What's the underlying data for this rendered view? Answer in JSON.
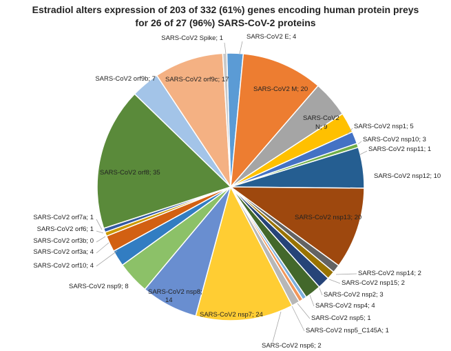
{
  "chart_data": {
    "type": "pie",
    "title_line1": "Estradiol alters expression of 203 of 332 (61%) genes encoding human protein preys",
    "title_line2": "for 26 of 27 (96%) SARS-CoV-2 proteins",
    "slices": [
      {
        "name": "SARS-CoV2 E",
        "value": 4,
        "color": "#5b9bd5"
      },
      {
        "name": "SARS-CoV2 M",
        "value": 20,
        "color": "#ed7d31"
      },
      {
        "name": "SARS-CoV2 N",
        "value": 9,
        "color": "#a5a5a5"
      },
      {
        "name": "SARS-CoV2 nsp1",
        "value": 5,
        "color": "#ffc000"
      },
      {
        "name": "SARS-CoV2 nsp10",
        "value": 3,
        "color": "#4472c4"
      },
      {
        "name": "SARS-CoV2 nsp11",
        "value": 1,
        "color": "#70ad47"
      },
      {
        "name": "SARS-CoV2 nsp12",
        "value": 10,
        "color": "#255e91"
      },
      {
        "name": "SARS-CoV2 nsp13",
        "value": 20,
        "color": "#9e480e"
      },
      {
        "name": "SARS-CoV2 nsp14",
        "value": 2,
        "color": "#636363"
      },
      {
        "name": "SARS-CoV2 nsp15",
        "value": 2,
        "color": "#997300"
      },
      {
        "name": "SARS-CoV2 nsp2",
        "value": 3,
        "color": "#264478"
      },
      {
        "name": "SARS-CoV2 nsp4",
        "value": 4,
        "color": "#43682b"
      },
      {
        "name": "SARS-CoV2 nsp5",
        "value": 1,
        "color": "#7cafdd"
      },
      {
        "name": "SARS-CoV2 nsp5_C145A",
        "value": 1,
        "color": "#f1975a"
      },
      {
        "name": "SARS-CoV2 nsp6",
        "value": 2,
        "color": "#b7b7b7"
      },
      {
        "name": "SARS-CoV2 nsp7",
        "value": 24,
        "color": "#ffcd33"
      },
      {
        "name": "SARS-CoV2 nsp8",
        "value": 14,
        "color": "#698ed0"
      },
      {
        "name": "SARS-CoV2 nsp9",
        "value": 8,
        "color": "#8cc168"
      },
      {
        "name": "SARS-CoV2 orf10",
        "value": 4,
        "color": "#327dc2"
      },
      {
        "name": "SARS-CoV2 orf3a",
        "value": 4,
        "color": "#d26012"
      },
      {
        "name": "SARS-CoV2 orf3b",
        "value": 0,
        "color": "#848484"
      },
      {
        "name": "SARS-CoV2 orf6",
        "value": 1,
        "color": "#cc9a00"
      },
      {
        "name": "SARS-CoV2 orf7a",
        "value": 1,
        "color": "#335aa1"
      },
      {
        "name": "SARS-CoV2 orf8",
        "value": 35,
        "color": "#5a8a3a"
      },
      {
        "name": "SARS-CoV2 orf9b",
        "value": 7,
        "color": "#a3c4e8"
      },
      {
        "name": "SARS-CoV2 orf9c",
        "value": 17,
        "color": "#f4b183"
      },
      {
        "name": "SARS-CoV2 Spike",
        "value": 1,
        "color": "#c9c9c9"
      }
    ],
    "labels": [
      {
        "text": "SARS-CoV2 E; 4"
      },
      {
        "text": "SARS-CoV2 M; 20"
      },
      {
        "text": "SARS-CoV2"
      },
      {
        "text": "N; 9"
      },
      {
        "text": "SARS-CoV2 nsp1; 5"
      },
      {
        "text": "SARS-CoV2 nsp10; 3"
      },
      {
        "text": "SARS-CoV2 nsp11; 1"
      },
      {
        "text": "SARS-CoV2 nsp12; 10"
      },
      {
        "text": "SARS-CoV2 nsp13; 20"
      },
      {
        "text": "SARS-CoV2 nsp14; 2"
      },
      {
        "text": "SARS-CoV2 nsp15; 2"
      },
      {
        "text": "SARS-CoV2 nsp2; 3"
      },
      {
        "text": "SARS-CoV2 nsp4; 4"
      },
      {
        "text": "SARS-CoV2 nsp5; 1"
      },
      {
        "text": "SARS-CoV2 nsp5_C145A; 1"
      },
      {
        "text": "SARS-CoV2 nsp6; 2"
      },
      {
        "text": "SARS-CoV2 nsp7; 24"
      },
      {
        "text": "SARS-CoV2 nsp8;"
      },
      {
        "text": "14"
      },
      {
        "text": "SARS-CoV2 nsp9; 8"
      },
      {
        "text": "SARS-CoV2 orf10; 4"
      },
      {
        "text": "SARS-CoV2 orf3a; 4"
      },
      {
        "text": "SARS-CoV2 orf3b; 0"
      },
      {
        "text": "SARS-CoV2 orf6; 1"
      },
      {
        "text": "SARS-CoV2 orf7a; 1"
      },
      {
        "text": "SARS-CoV2 orf8; 35"
      },
      {
        "text": "SARS-CoV2 orf9b; 7"
      },
      {
        "text": "SARS-CoV2 orf9c; 17"
      },
      {
        "text": "SARS-CoV2 Spike; 1"
      }
    ]
  }
}
